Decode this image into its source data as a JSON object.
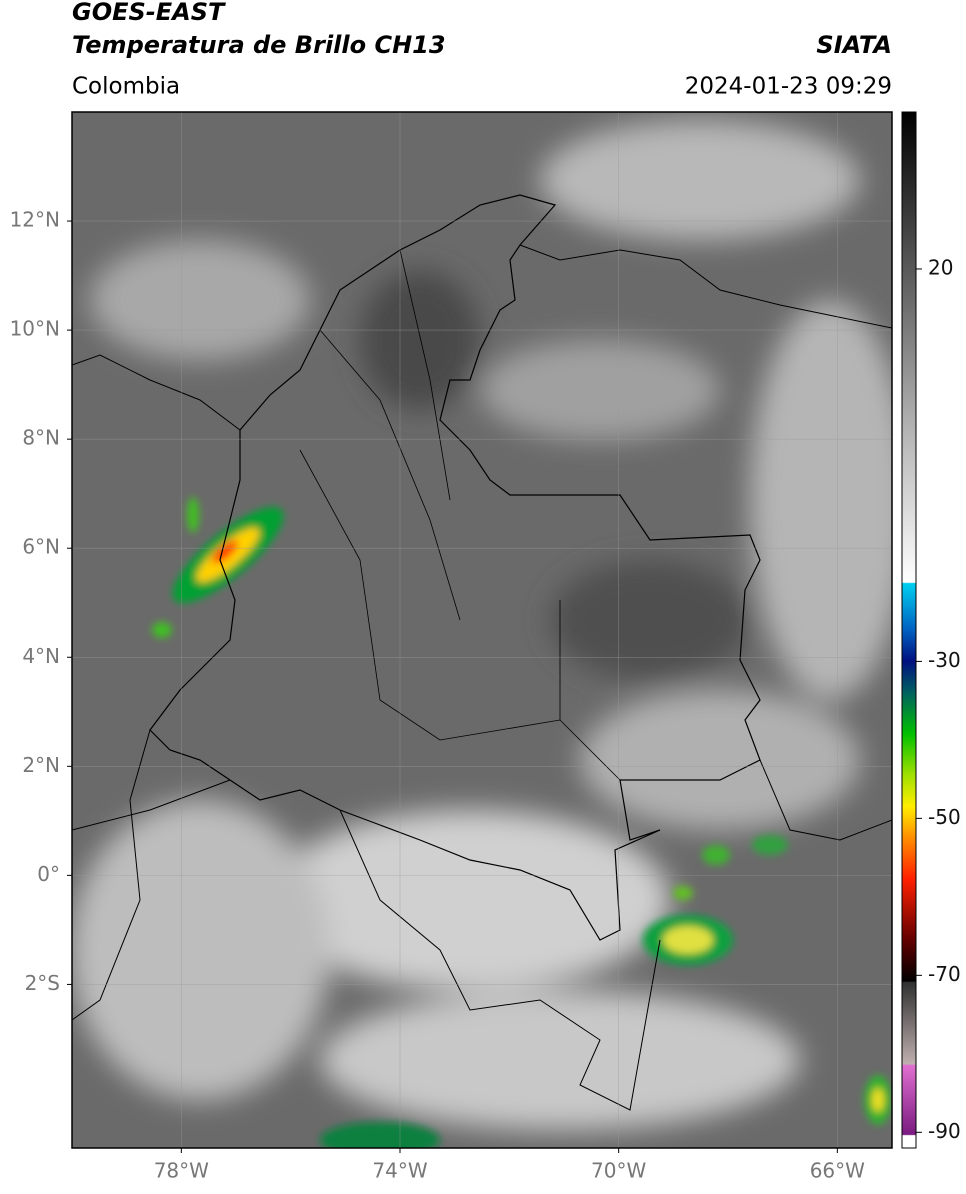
{
  "header": {
    "title": "GOES-EAST",
    "subtitle": "Temperatura de Brillo CH13",
    "source": "SIATA",
    "region": "Colombia",
    "datetime": "2024-01-23 09:29"
  },
  "map": {
    "xlim": [
      -80,
      -65
    ],
    "ylim": [
      -5,
      14
    ],
    "xticks": [
      {
        "value": -78,
        "label": "78°W"
      },
      {
        "value": -74,
        "label": "74°W"
      },
      {
        "value": -70,
        "label": "70°W"
      },
      {
        "value": -66,
        "label": "66°W"
      }
    ],
    "yticks": [
      {
        "value": 12,
        "label": "12°N"
      },
      {
        "value": 10,
        "label": "10°N"
      },
      {
        "value": 8,
        "label": "8°N"
      },
      {
        "value": 6,
        "label": "6°N"
      },
      {
        "value": 4,
        "label": "4°N"
      },
      {
        "value": 2,
        "label": "2°N"
      },
      {
        "value": 0,
        "label": "0°"
      },
      {
        "value": -2,
        "label": "2°S"
      }
    ],
    "grid": true
  },
  "colorbar": {
    "lim": [
      -92,
      40
    ],
    "ticks": [
      20,
      -30,
      -50,
      -70,
      -90
    ]
  }
}
